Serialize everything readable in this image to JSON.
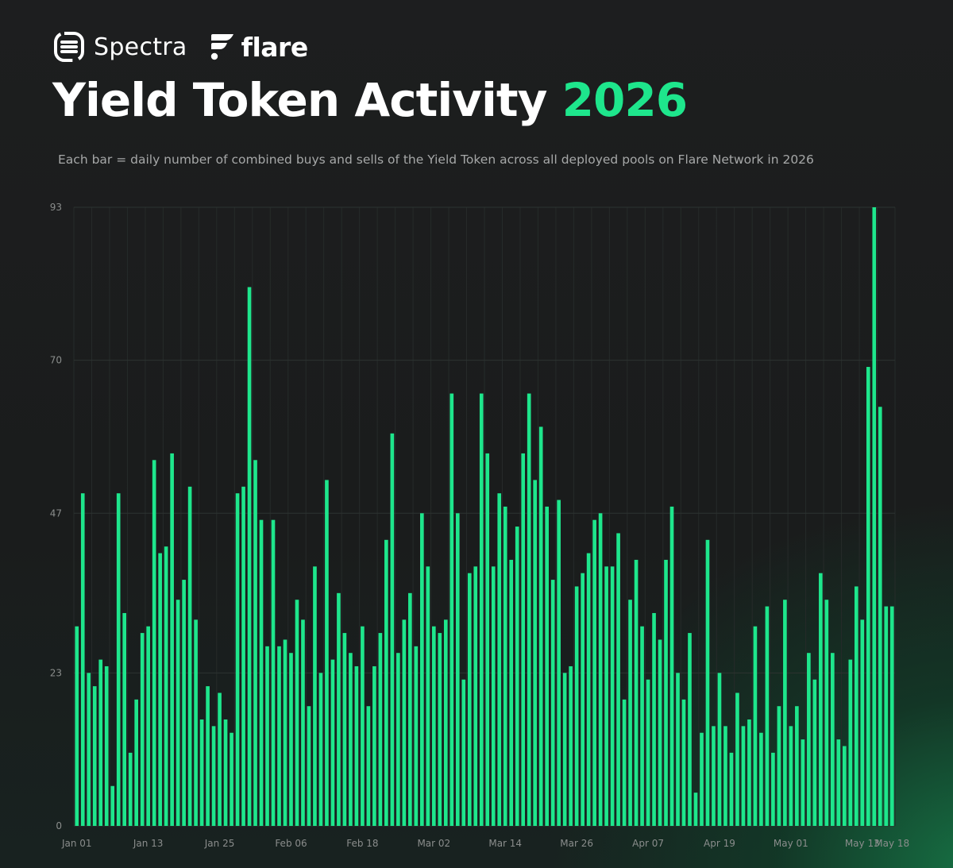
{
  "header": {
    "brand_spectra": "Spectra",
    "brand_flare": "flare",
    "title_main": "Yield Token Activity",
    "title_year": "2026",
    "subtitle": "Each bar = daily number of combined buys and sells of the Yield Token across all deployed pools on Flare Network in 2026"
  },
  "colors": {
    "bar": "#1ee68c",
    "accent": "#1ee68c",
    "background": "#1c1d1e",
    "grid": "#2d3331",
    "tick_label": "#8a8d8c"
  },
  "chart_data": {
    "type": "bar",
    "title": "Yield Token Activity 2026",
    "xlabel": "",
    "ylabel": "",
    "ylim": [
      0,
      93
    ],
    "y_ticks": [
      0,
      23,
      47,
      70,
      93
    ],
    "grid": true,
    "x_tick_labels": [
      {
        "label": "Jan 01",
        "index": 0
      },
      {
        "label": "Jan 13",
        "index": 12
      },
      {
        "label": "Jan 25",
        "index": 24
      },
      {
        "label": "Feb 06",
        "index": 36
      },
      {
        "label": "Feb 18",
        "index": 48
      },
      {
        "label": "Mar 02",
        "index": 60
      },
      {
        "label": "Mar 14",
        "index": 72
      },
      {
        "label": "Mar 26",
        "index": 84
      },
      {
        "label": "Apr 07",
        "index": 96
      },
      {
        "label": "Apr 19",
        "index": 108
      },
      {
        "label": "May 01",
        "index": 120
      },
      {
        "label": "May 13",
        "index": 132
      },
      {
        "label": "May 18",
        "index": 137
      }
    ],
    "values": [
      30,
      50,
      23,
      21,
      25,
      24,
      6,
      50,
      32,
      11,
      19,
      29,
      30,
      55,
      41,
      42,
      56,
      34,
      37,
      51,
      31,
      16,
      21,
      15,
      20,
      16,
      14,
      50,
      51,
      81,
      55,
      46,
      27,
      46,
      27,
      28,
      26,
      34,
      31,
      18,
      39,
      23,
      52,
      25,
      35,
      29,
      26,
      24,
      30,
      18,
      24,
      29,
      43,
      59,
      26,
      31,
      35,
      27,
      47,
      39,
      30,
      29,
      31,
      65,
      47,
      22,
      38,
      39,
      65,
      56,
      39,
      50,
      48,
      40,
      45,
      56,
      65,
      52,
      60,
      48,
      37,
      49,
      23,
      24,
      36,
      38,
      41,
      46,
      47,
      39,
      39,
      44,
      19,
      34,
      40,
      30,
      22,
      32,
      28,
      40,
      48,
      23,
      19,
      29,
      5,
      14,
      43,
      15,
      23,
      15,
      11,
      20,
      15,
      16,
      30,
      14,
      33,
      11,
      18,
      34,
      15,
      18,
      13,
      26,
      22,
      38,
      34,
      26,
      13,
      12,
      25,
      36,
      31,
      69,
      93,
      63,
      33,
      33
    ]
  }
}
